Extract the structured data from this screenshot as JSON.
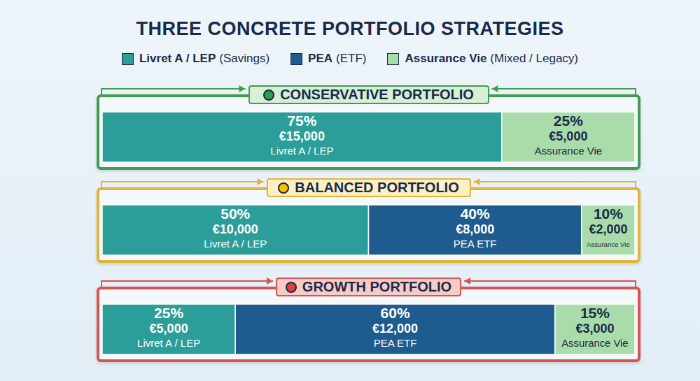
{
  "chart_data": {
    "type": "bar",
    "orientation": "horizontal",
    "stacked": true,
    "data_labels": true,
    "tick_labels": false,
    "legend": "top",
    "title": "THREE CONCRETE PORTFOLIO STRATEGIES",
    "xlim": [
      0,
      100
    ],
    "categories": [
      "CONSERVATIVE PORTFOLIO",
      "BALANCED PORTFOLIO",
      "GROWTH PORTFOLIO"
    ],
    "series": [
      {
        "name": "Livret A / LEP",
        "legend_note": "(Savings)",
        "segment_label": "Livret A / LEP",
        "color": "#2b9e9a",
        "values": [
          75,
          50,
          25
        ],
        "value_labels": [
          "75%",
          "50%",
          "25%"
        ],
        "amount_labels": [
          "€15,000",
          "€10,000",
          "€5,000"
        ]
      },
      {
        "name": "PEA",
        "legend_note": "(ETF)",
        "segment_label": "PEA ETF",
        "color": "#1e5b8e",
        "values": [
          null,
          40,
          60
        ],
        "value_labels": [
          null,
          "40%",
          "60%"
        ],
        "amount_labels": [
          null,
          "€8,000",
          "€12,000"
        ]
      },
      {
        "name": "Assurance Vie",
        "legend_note": "(Mixed / Legacy)",
        "segment_label": "Assurance Vie",
        "color": "#a9dcaa",
        "values": [
          25,
          10,
          15
        ],
        "value_labels": [
          "25%",
          "10%",
          "15%"
        ],
        "amount_labels": [
          "€5,000",
          "€2,000",
          "€3,000"
        ]
      }
    ]
  }
}
